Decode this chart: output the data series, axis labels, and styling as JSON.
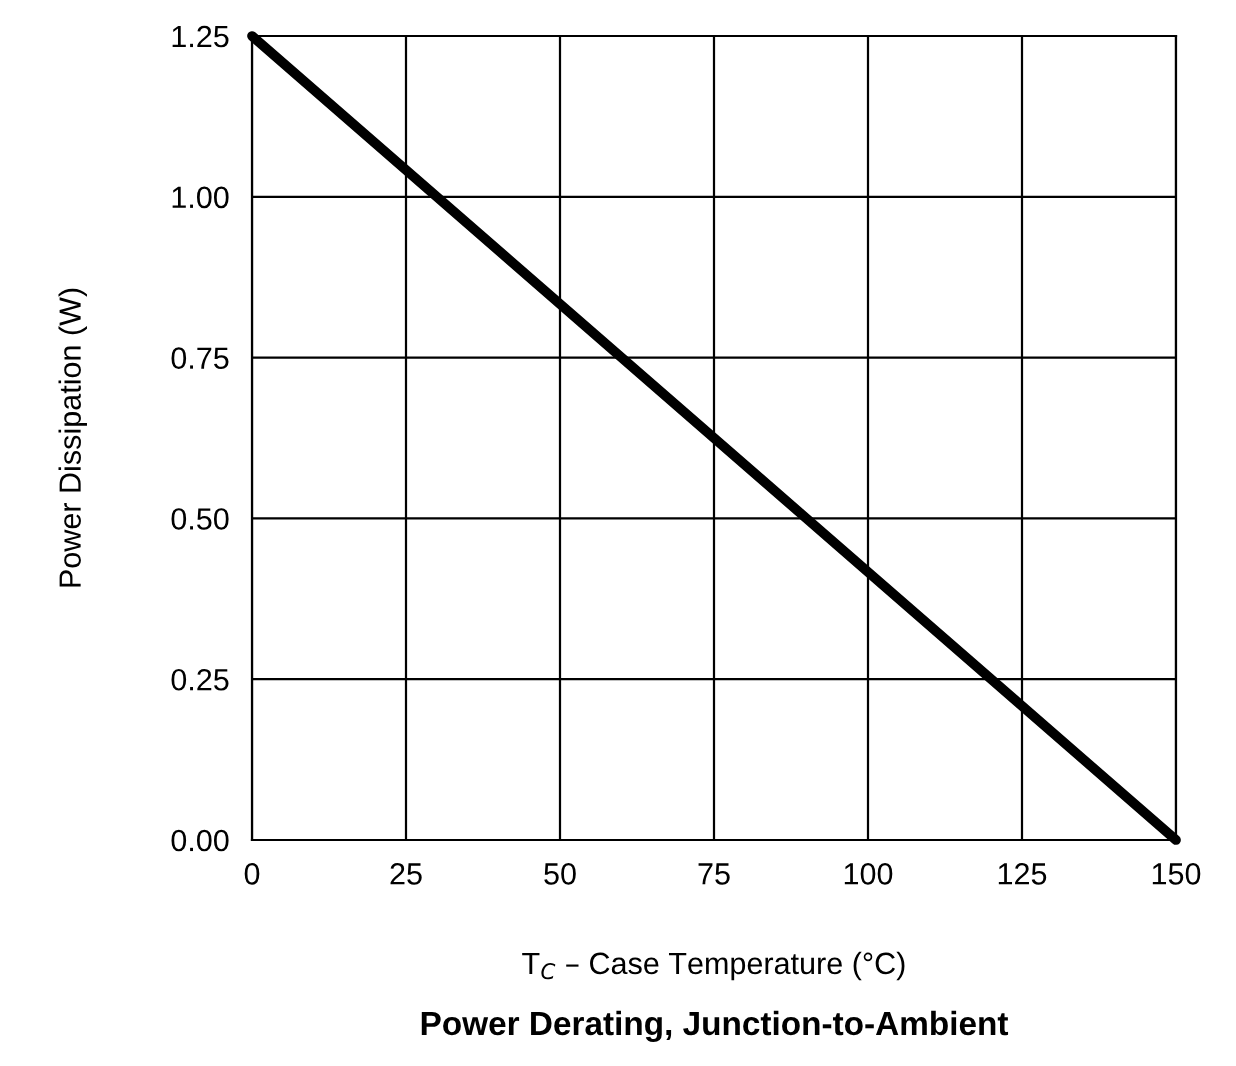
{
  "chart_data": {
    "type": "line",
    "title": "Power Derating, Junction-to-Ambient",
    "xlabel": "T$_{C}$ – Case Temperature (°C)",
    "ylabel": "Power Dissipation (W)",
    "x": [
      0,
      150
    ],
    "series": [
      {
        "color": "#000000",
        "values": [
          1.25,
          0
        ]
      }
    ],
    "xlim": [
      0,
      150
    ],
    "xticks": [
      0,
      25,
      50,
      75,
      100,
      125,
      150
    ],
    "ylim": [
      0,
      1.25
    ],
    "yticks": [
      {
        "value": 0,
        "label": "0.00"
      },
      {
        "value": 0.25,
        "label": "0.25"
      },
      {
        "value": 0.5,
        "label": "0.50"
      },
      {
        "value": 0.75,
        "label": "0.75"
      },
      {
        "value": 1.0,
        "label": "1.00"
      },
      {
        "value": 1.25,
        "label": "1.25"
      }
    ],
    "grid": true
  }
}
